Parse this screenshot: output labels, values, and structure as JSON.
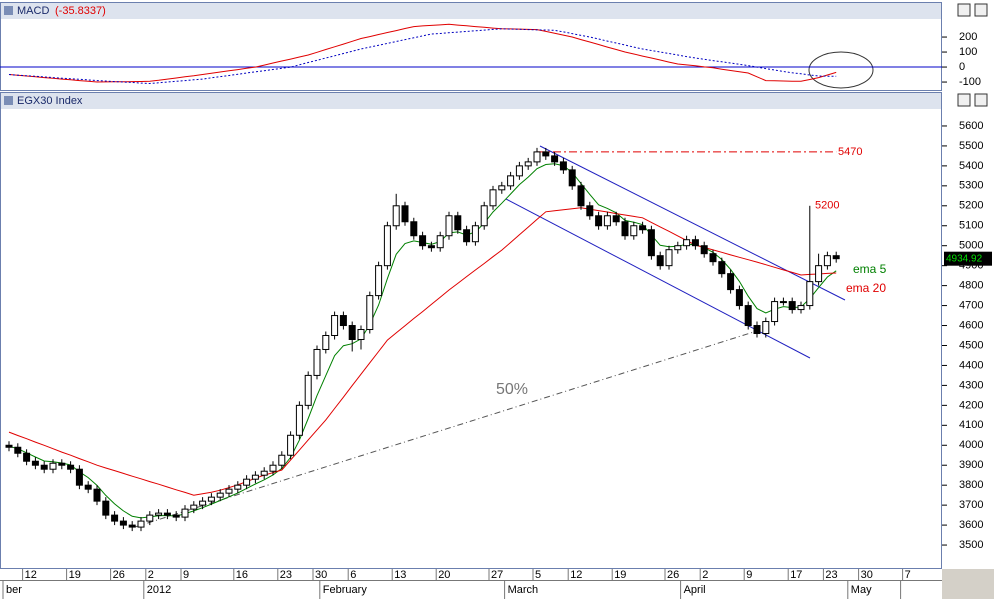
{
  "chart_data": [
    {
      "type": "line",
      "title": "MACD",
      "title_value": "(-35.8337)",
      "ylim": [
        -153,
        307
      ],
      "yticks": [
        -100,
        0,
        100,
        200
      ],
      "reference_lines": [
        0
      ],
      "reference_color": "#0000c8",
      "series": [
        {
          "name": "MACD",
          "color": "#e00000",
          "line_style": "solid",
          "values": [
            -50,
            -55,
            -60,
            -65,
            -70,
            -75,
            -80,
            -85,
            -90,
            -95,
            -100,
            -99,
            -98,
            -98,
            -97,
            -96,
            -95,
            -88,
            -80,
            -73,
            -65,
            -58,
            -50,
            -42,
            -33,
            -25,
            -17,
            -8,
            0,
            13,
            27,
            40,
            53,
            67,
            80,
            98,
            117,
            135,
            153,
            172,
            190,
            203,
            217,
            230,
            243,
            257,
            270,
            274,
            278,
            281,
            285,
            280,
            275,
            270,
            265,
            260,
            255,
            254,
            253,
            251,
            250,
            238,
            225,
            213,
            200,
            183,
            167,
            150,
            133,
            117,
            100,
            87,
            73,
            60,
            47,
            33,
            20,
            14,
            8,
            1,
            -5,
            -14,
            -23,
            -31,
            -40,
            -65,
            -90,
            -91,
            -93,
            -94,
            -95,
            -83,
            -70,
            -53,
            -35.8337,
            null,
            null,
            null,
            null,
            null,
            null,
            null,
            null
          ]
        },
        {
          "name": "Signal",
          "color": "#0000c0",
          "line_style": "dotted",
          "values": [
            -50,
            -54,
            -58,
            -62,
            -66,
            -70,
            -74,
            -78,
            -82,
            -86,
            -90,
            -93,
            -97,
            -100,
            -103,
            -107,
            -110,
            -105,
            -100,
            -95,
            -90,
            -85,
            -80,
            -72,
            -64,
            -56,
            -48,
            -40,
            -32,
            -24,
            -16,
            -8,
            0,
            15,
            30,
            45,
            60,
            75,
            90,
            105,
            120,
            133,
            145,
            158,
            170,
            183,
            195,
            208,
            220,
            224,
            229,
            233,
            238,
            242,
            246,
            251,
            255,
            253,
            252,
            250,
            248,
            247,
            245,
            234,
            223,
            211,
            200,
            187,
            173,
            160,
            147,
            133,
            120,
            110,
            100,
            90,
            80,
            70,
            60,
            52,
            43,
            35,
            27,
            18,
            10,
            0,
            -10,
            -20,
            -30,
            -38,
            -45,
            -53,
            -60,
            -61,
            -62,
            null,
            null,
            null,
            null,
            null,
            null,
            null,
            null
          ]
        }
      ]
    },
    {
      "type": "candlestick",
      "title": "EGX30 Index",
      "categories": [
        null,
        null,
        "12",
        null,
        null,
        null,
        null,
        "19",
        null,
        null,
        null,
        null,
        "26",
        null,
        null,
        null,
        "2",
        null,
        null,
        null,
        "9",
        null,
        null,
        null,
        null,
        null,
        "16",
        null,
        null,
        null,
        null,
        "23",
        null,
        null,
        null,
        "30",
        null,
        null,
        null,
        "6",
        null,
        null,
        null,
        null,
        "13",
        null,
        null,
        null,
        null,
        "20",
        null,
        null,
        null,
        null,
        null,
        "27",
        null,
        null,
        null,
        null,
        "5",
        null,
        null,
        null,
        "12",
        null,
        null,
        null,
        null,
        "19",
        null,
        null,
        null,
        null,
        null,
        "26",
        null,
        null,
        null,
        "2",
        null,
        null,
        null,
        null,
        "9",
        null,
        null,
        null,
        null,
        "17",
        null,
        null,
        null,
        "23",
        null,
        null,
        null,
        "30",
        null,
        null,
        null,
        null,
        "7"
      ],
      "month_labels": [
        "ber",
        null,
        null,
        null,
        null,
        null,
        null,
        null,
        null,
        null,
        null,
        null,
        null,
        null,
        null,
        null,
        "2012",
        null,
        null,
        null,
        null,
        null,
        null,
        null,
        null,
        null,
        null,
        null,
        null,
        null,
        null,
        null,
        null,
        null,
        null,
        null,
        "February",
        null,
        null,
        null,
        null,
        null,
        null,
        null,
        null,
        null,
        null,
        null,
        null,
        null,
        null,
        null,
        null,
        null,
        null,
        null,
        null,
        "March",
        null,
        null,
        null,
        null,
        null,
        null,
        null,
        null,
        null,
        null,
        null,
        null,
        null,
        null,
        null,
        null,
        null,
        null,
        null,
        "April",
        null,
        null,
        null,
        null,
        null,
        null,
        null,
        null,
        null,
        null,
        null,
        null,
        null,
        null,
        null,
        null,
        null,
        null,
        "May",
        null,
        null,
        null,
        null,
        null
      ],
      "ylim": [
        3390,
        5680
      ],
      "yticks": [
        3500,
        3600,
        3700,
        3800,
        3900,
        4000,
        4100,
        4200,
        4300,
        4400,
        4500,
        4600,
        4700,
        4800,
        4900,
        5000,
        5100,
        5200,
        5300,
        5400,
        5500,
        5600
      ],
      "reference_lines": [
        5470
      ],
      "reference_color": "#e00000",
      "annotation_text": "50%",
      "series": [
        {
          "name": "EGX30 Index",
          "open": [
            4000,
            3990,
            3960,
            3920,
            3900,
            3880,
            3910,
            3900,
            3880,
            3800,
            3780,
            3720,
            3650,
            3620,
            3600,
            3590,
            3620,
            3650,
            3660,
            3650,
            3640,
            3680,
            3700,
            3720,
            3740,
            3760,
            3780,
            3800,
            3830,
            3850,
            3870,
            3900,
            3950,
            4050,
            4200,
            4350,
            4480,
            4550,
            4650,
            4600,
            4530,
            4580,
            4750,
            4900,
            5100,
            5200,
            5120,
            5050,
            5000,
            4990,
            5050,
            5150,
            5080,
            5020,
            5100,
            5200,
            5280,
            5300,
            5350,
            5400,
            5420,
            5470,
            5450,
            5420,
            5380,
            5300,
            5200,
            5150,
            5100,
            5150,
            5120,
            5050,
            5100,
            5080,
            4950,
            4900,
            4980,
            5000,
            5030,
            5000,
            4960,
            4920,
            4860,
            4780,
            4700,
            4600,
            4560,
            4620,
            4720,
            4720,
            4680,
            4700,
            4820,
            4900,
            4950,
            null,
            null,
            null,
            null,
            null,
            null,
            null,
            null
          ],
          "high": [
            4020,
            4010,
            3980,
            3940,
            3920,
            3930,
            3930,
            3920,
            3900,
            3820,
            3800,
            3740,
            3670,
            3640,
            3620,
            3640,
            3670,
            3680,
            3680,
            3670,
            3700,
            3720,
            3740,
            3760,
            3780,
            3800,
            3820,
            3850,
            3870,
            3890,
            3920,
            3970,
            4070,
            4220,
            4370,
            4500,
            4570,
            4670,
            4670,
            4620,
            4600,
            4770,
            4920,
            5120,
            5260,
            5220,
            5140,
            5070,
            5020,
            5070,
            5170,
            5170,
            5100,
            5120,
            5220,
            5300,
            5320,
            5370,
            5420,
            5440,
            5490,
            5490,
            5470,
            5440,
            5400,
            5320,
            5220,
            5170,
            5170,
            5170,
            5140,
            5120,
            5120,
            5100,
            4970,
            5000,
            5020,
            5050,
            5050,
            5020,
            4980,
            4940,
            4880,
            4800,
            4720,
            4620,
            4640,
            4740,
            4740,
            4740,
            4720,
            5200,
            4960,
            4970,
            4970,
            null,
            null,
            null,
            null,
            null,
            null,
            null,
            null
          ],
          "low": [
            3970,
            3940,
            3900,
            3880,
            3860,
            3860,
            3880,
            3860,
            3780,
            3760,
            3700,
            3630,
            3600,
            3580,
            3570,
            3570,
            3600,
            3630,
            3630,
            3620,
            3620,
            3660,
            3680,
            3700,
            3720,
            3740,
            3760,
            3780,
            3810,
            3830,
            3850,
            3880,
            3930,
            4030,
            4180,
            4330,
            4460,
            4530,
            4580,
            4470,
            4480,
            4560,
            4730,
            4880,
            5080,
            5100,
            5030,
            4980,
            4970,
            4970,
            5030,
            5060,
            5000,
            5000,
            5080,
            5180,
            5260,
            5280,
            5330,
            5380,
            5400,
            5430,
            5400,
            5360,
            5280,
            5180,
            5130,
            5080,
            5080,
            5100,
            5030,
            5030,
            5060,
            4930,
            4880,
            4880,
            4960,
            4980,
            4980,
            4940,
            4900,
            4840,
            4760,
            4680,
            4580,
            4540,
            4540,
            4600,
            4700,
            4660,
            4660,
            4680,
            4800,
            4880,
            4915,
            null,
            null,
            null,
            null,
            null,
            null,
            null,
            null
          ],
          "close": [
            3990,
            3960,
            3920,
            3900,
            3880,
            3910,
            3900,
            3880,
            3800,
            3780,
            3720,
            3650,
            3620,
            3600,
            3590,
            3620,
            3650,
            3660,
            3650,
            3640,
            3680,
            3700,
            3720,
            3740,
            3760,
            3780,
            3800,
            3830,
            3850,
            3870,
            3900,
            3950,
            4050,
            4200,
            4350,
            4480,
            4550,
            4650,
            4600,
            4530,
            4580,
            4750,
            4900,
            5100,
            5200,
            5120,
            5050,
            5000,
            4990,
            5050,
            5150,
            5080,
            5020,
            5100,
            5200,
            5280,
            5300,
            5350,
            5400,
            5420,
            5470,
            5450,
            5420,
            5380,
            5300,
            5200,
            5150,
            5100,
            5150,
            5120,
            5050,
            5100,
            5080,
            4950,
            4900,
            4980,
            5000,
            5030,
            5000,
            4960,
            4920,
            4860,
            4780,
            4700,
            4600,
            4560,
            4620,
            4720,
            4720,
            4680,
            4700,
            4820,
            4900,
            4950,
            4934.92,
            null,
            null,
            null,
            null,
            null,
            null,
            null,
            null
          ]
        }
      ],
      "overlays": [
        {
          "name": "ema 5",
          "color": "#008000",
          "values": [
            3995,
            3983,
            3962,
            3941,
            3921,
            3917,
            3911,
            3901,
            3867,
            3838,
            3799,
            3749,
            3706,
            3671,
            3644,
            3636,
            3641,
            3647,
            3648,
            3645,
            3657,
            3671,
            3687,
            3705,
            3723,
            3742,
            3761,
            3784,
            3806,
            3827,
            3851,
            3884,
            3939,
            4026,
            4134,
            4249,
            4349,
            4449,
            4499,
            4509,
            4533,
            4605,
            4703,
            4835,
            4957,
            5011,
            5024,
            5016,
            5007,
            5021,
            5064,
            5069,
            5053,
            5069,
            5113,
            5169,
            5213,
            5259,
            5306,
            5344,
            5386,
            5407,
            5411,
            5401,
            5367,
            5311,
            5257,
            5205,
            5187,
            5165,
            5127,
            5118,
            5105,
            5053,
            5002,
            4995,
            4997,
            5008,
            5005,
            4990,
            4967,
            4931,
            4881,
            4821,
            4747,
            4685,
            4663,
            4682,
            4695,
            4690,
            4693,
            4735,
            4790,
            4843,
            4874,
            null,
            null,
            null,
            null,
            null,
            null,
            null,
            null
          ]
        },
        {
          "name": "ema 20",
          "color": "#e00000",
          "values": [
            4066,
            4049,
            4033,
            4016,
            4000,
            3983,
            3966,
            3950,
            3933,
            3917,
            3900,
            3886,
            3873,
            3859,
            3845,
            3832,
            3818,
            3805,
            3791,
            3777,
            3764,
            3750,
            3757,
            3765,
            3775,
            3788,
            3802,
            3818,
            3835,
            3850,
            3863,
            3876,
            3926,
            3976,
            4027,
            4077,
            4127,
            4184,
            4241,
            4299,
            4356,
            4413,
            4470,
            4527,
            4563,
            4599,
            4635,
            4670,
            4706,
            4742,
            4778,
            4811,
            4845,
            4878,
            4911,
            4945,
            4978,
            5016,
            5055,
            5093,
            5132,
            5170,
            5175,
            5180,
            5185,
            5190,
            5183,
            5176,
            5169,
            5161,
            5154,
            5147,
            5140,
            5117,
            5094,
            5072,
            5049,
            5026,
            5003,
            4991,
            4979,
            4967,
            4954,
            4942,
            4930,
            4918,
            4905,
            4892,
            4879,
            4866,
            4853,
            4856,
            4858,
            4861,
            4863,
            null,
            null,
            null,
            null,
            null,
            null,
            null,
            null
          ]
        }
      ]
    }
  ]
}
